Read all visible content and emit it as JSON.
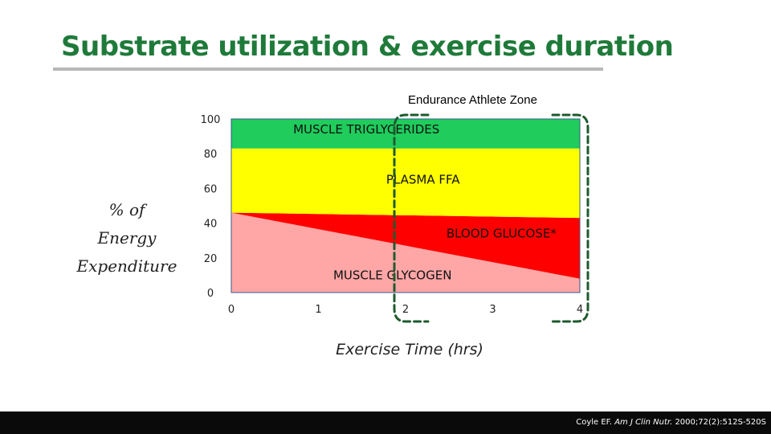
{
  "slide": {
    "title": "Substrate utilization & exercise duration",
    "zone_label": "Endurance Athlete Zone",
    "ylabel_lines": [
      "% of",
      "Energy",
      "Expenditure"
    ],
    "xlabel": "Exercise Time (hrs)",
    "citation": {
      "author": "Coyle EF.",
      "journal": "Am J Clin Nutr.",
      "details": "2000;72(2):512S-520S"
    }
  },
  "chart_data": {
    "type": "area",
    "stacked": true,
    "x": [
      0,
      4
    ],
    "xlim": [
      0,
      4
    ],
    "ylim": [
      0,
      100
    ],
    "xticks": [
      0,
      1,
      2,
      3,
      4
    ],
    "yticks": [
      0,
      20,
      40,
      60,
      80,
      100
    ],
    "xlabel": "Exercise Time (hrs)",
    "ylabel": "% of Energy Expenditure",
    "series": [
      {
        "name": "MUSCLE GLYCOGEN",
        "color": "#ffa6a6",
        "values": [
          46,
          8
        ]
      },
      {
        "name": "BLOOD GLUCOSE*",
        "color": "#ff0000",
        "values": [
          0,
          35
        ]
      },
      {
        "name": "PLASMA FFA",
        "color": "#ffff00",
        "values": [
          37,
          40
        ]
      },
      {
        "name": "MUSCLE TRIGLYCERIDES",
        "color": "#1fcc5c",
        "values": [
          17,
          17
        ]
      }
    ],
    "labels": [
      {
        "text": "MUSCLE TRIGLYCERIDES",
        "x": 1.55,
        "y": 94
      },
      {
        "text": "PLASMA FFA",
        "x": 2.2,
        "y": 65
      },
      {
        "text": "BLOOD GLUCOSE*",
        "x": 3.1,
        "y": 34
      },
      {
        "text": "MUSCLE GLYCOGEN",
        "x": 1.85,
        "y": 10
      }
    ],
    "annotations": [
      {
        "text": "Endurance Athlete Zone",
        "x_range": [
          2,
          4
        ],
        "style": "dashed-bracket",
        "color": "#1e5a2e"
      }
    ]
  }
}
